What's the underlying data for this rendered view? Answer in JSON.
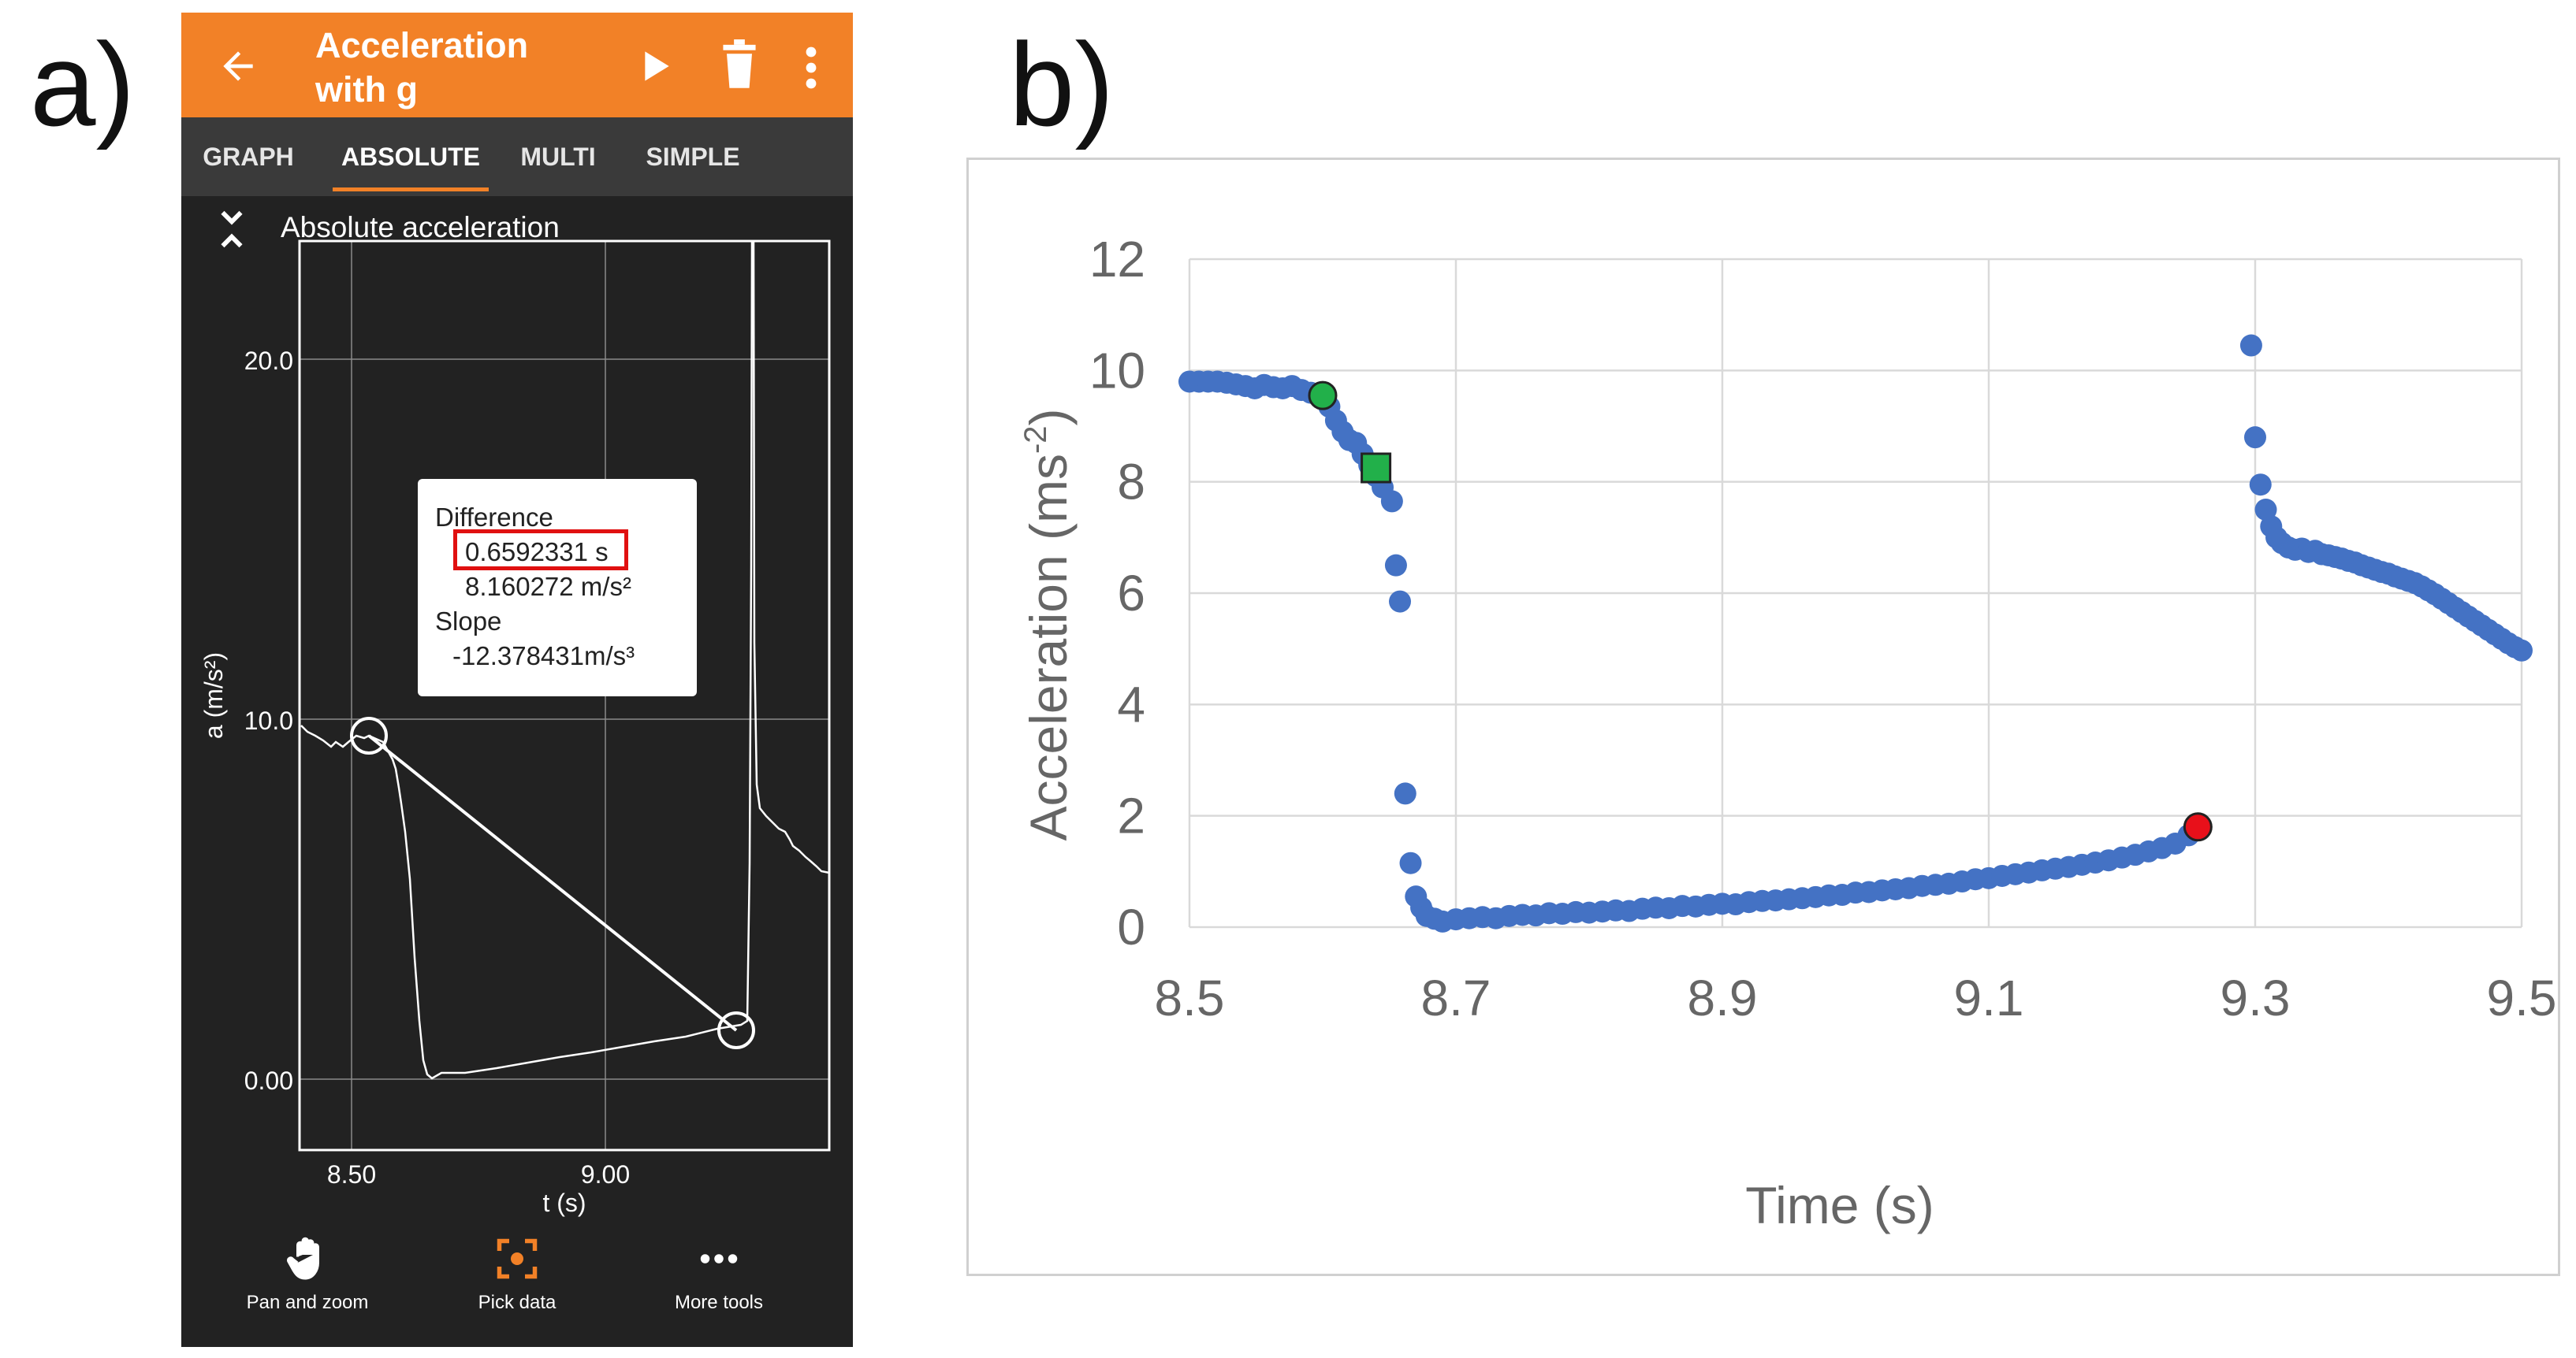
{
  "labels": {
    "panel_a": "a)",
    "panel_b": "b)"
  },
  "app": {
    "title": "Acceleration with g",
    "icons": [
      "back-arrow-icon",
      "play-icon",
      "delete-icon",
      "more-vert-icon"
    ],
    "tabs": [
      {
        "label": "GRAPH",
        "active": false
      },
      {
        "label": "ABSOLUTE",
        "active": true
      },
      {
        "label": "MULTI",
        "active": false
      },
      {
        "label": "SIMPLE",
        "active": false
      }
    ],
    "colors": {
      "accent": "#f28127",
      "background": "#222222",
      "tabbar": "#3a3a3a"
    }
  },
  "phone_graph": {
    "title": "Absolute acceleration",
    "ylabel": "a (m/s²)",
    "xlabel": "t (s)",
    "x_ticks": [
      "8.50",
      "9.00"
    ],
    "y_ticks": [
      "20.0",
      "10.0",
      "0.00"
    ],
    "tooltip": {
      "difference_label": "Difference",
      "difference_time": "0.6592331 s",
      "difference_accel": "8.160272 m/s²",
      "slope_label": "Slope",
      "slope_value": "-12.378431m/s³"
    }
  },
  "bottom_tools": [
    {
      "label": "Pan and zoom",
      "icon": "hand-icon"
    },
    {
      "label": "Pick data",
      "icon": "crosshair-select-icon"
    },
    {
      "label": "More tools",
      "icon": "more-horiz-icon"
    }
  ],
  "chart_data": {
    "type": "scatter",
    "title": "",
    "xlabel": "Time (s)",
    "ylabel": "Acceleration (ms⁻²)",
    "ylabel_parts": {
      "main": "Acceleration (ms",
      "sup": "-2",
      "end": ")"
    },
    "xlim": [
      8.5,
      9.5
    ],
    "ylim": [
      0,
      12
    ],
    "x_ticks": [
      "8.5",
      "8.7",
      "8.9",
      "9.1",
      "9.3",
      "9.5"
    ],
    "y_ticks": [
      "0",
      "2",
      "4",
      "6",
      "8",
      "10",
      "12"
    ],
    "grid": true,
    "series": [
      {
        "name": "data",
        "color": "#4472c4",
        "points": [
          [
            8.5,
            9.8
          ],
          [
            8.507,
            9.8
          ],
          [
            8.514,
            9.8
          ],
          [
            8.521,
            9.8
          ],
          [
            8.528,
            9.78
          ],
          [
            8.535,
            9.75
          ],
          [
            8.542,
            9.72
          ],
          [
            8.549,
            9.68
          ],
          [
            8.556,
            9.74
          ],
          [
            8.563,
            9.7
          ],
          [
            8.57,
            9.68
          ],
          [
            8.577,
            9.72
          ],
          [
            8.584,
            9.65
          ],
          [
            8.591,
            9.6
          ],
          [
            8.598,
            9.55
          ],
          [
            8.605,
            9.35
          ],
          [
            8.61,
            9.1
          ],
          [
            8.615,
            8.9
          ],
          [
            8.62,
            8.75
          ],
          [
            8.625,
            8.7
          ],
          [
            8.63,
            8.5
          ],
          [
            8.635,
            8.3
          ],
          [
            8.64,
            8.1
          ],
          [
            8.645,
            7.9
          ],
          [
            8.652,
            7.65
          ],
          [
            8.655,
            6.5
          ],
          [
            8.658,
            5.85
          ],
          [
            8.662,
            2.4
          ],
          [
            8.666,
            1.15
          ],
          [
            8.67,
            0.55
          ],
          [
            8.674,
            0.35
          ],
          [
            8.678,
            0.2
          ],
          [
            8.684,
            0.15
          ],
          [
            8.69,
            0.1
          ],
          [
            8.7,
            0.14
          ],
          [
            8.71,
            0.16
          ],
          [
            8.72,
            0.18
          ],
          [
            8.73,
            0.16
          ],
          [
            8.74,
            0.2
          ],
          [
            8.75,
            0.22
          ],
          [
            8.76,
            0.21
          ],
          [
            8.77,
            0.25
          ],
          [
            8.78,
            0.24
          ],
          [
            8.79,
            0.27
          ],
          [
            8.8,
            0.26
          ],
          [
            8.81,
            0.28
          ],
          [
            8.82,
            0.3
          ],
          [
            8.83,
            0.29
          ],
          [
            8.84,
            0.33
          ],
          [
            8.85,
            0.35
          ],
          [
            8.86,
            0.34
          ],
          [
            8.87,
            0.38
          ],
          [
            8.88,
            0.37
          ],
          [
            8.89,
            0.4
          ],
          [
            8.9,
            0.42
          ],
          [
            8.91,
            0.41
          ],
          [
            8.92,
            0.45
          ],
          [
            8.93,
            0.47
          ],
          [
            8.94,
            0.48
          ],
          [
            8.95,
            0.5
          ],
          [
            8.96,
            0.52
          ],
          [
            8.97,
            0.54
          ],
          [
            8.98,
            0.57
          ],
          [
            8.99,
            0.58
          ],
          [
            9.0,
            0.62
          ],
          [
            9.01,
            0.63
          ],
          [
            9.02,
            0.66
          ],
          [
            9.03,
            0.68
          ],
          [
            9.04,
            0.7
          ],
          [
            9.05,
            0.74
          ],
          [
            9.06,
            0.76
          ],
          [
            9.07,
            0.78
          ],
          [
            9.08,
            0.82
          ],
          [
            9.09,
            0.86
          ],
          [
            9.1,
            0.88
          ],
          [
            9.11,
            0.92
          ],
          [
            9.12,
            0.95
          ],
          [
            9.13,
            0.98
          ],
          [
            9.14,
            1.02
          ],
          [
            9.15,
            1.05
          ],
          [
            9.16,
            1.08
          ],
          [
            9.17,
            1.12
          ],
          [
            9.18,
            1.16
          ],
          [
            9.19,
            1.2
          ],
          [
            9.2,
            1.25
          ],
          [
            9.21,
            1.3
          ],
          [
            9.22,
            1.36
          ],
          [
            9.23,
            1.42
          ],
          [
            9.24,
            1.5
          ],
          [
            9.25,
            1.65
          ],
          [
            9.297,
            10.45
          ],
          [
            9.3,
            8.8
          ],
          [
            9.304,
            7.95
          ],
          [
            9.308,
            7.5
          ],
          [
            9.312,
            7.2
          ],
          [
            9.316,
            7.0
          ],
          [
            9.32,
            6.9
          ],
          [
            9.325,
            6.82
          ],
          [
            9.33,
            6.78
          ],
          [
            9.335,
            6.8
          ],
          [
            9.34,
            6.74
          ],
          [
            9.345,
            6.76
          ],
          [
            9.35,
            6.7
          ],
          [
            9.355,
            6.68
          ],
          [
            9.36,
            6.65
          ],
          [
            9.365,
            6.62
          ],
          [
            9.37,
            6.58
          ],
          [
            9.375,
            6.55
          ],
          [
            9.38,
            6.5
          ],
          [
            9.385,
            6.46
          ],
          [
            9.39,
            6.42
          ],
          [
            9.395,
            6.38
          ],
          [
            9.4,
            6.35
          ],
          [
            9.405,
            6.3
          ],
          [
            9.41,
            6.26
          ],
          [
            9.415,
            6.22
          ],
          [
            9.42,
            6.18
          ],
          [
            9.425,
            6.12
          ],
          [
            9.43,
            6.05
          ],
          [
            9.435,
            5.98
          ],
          [
            9.44,
            5.9
          ],
          [
            9.445,
            5.82
          ],
          [
            9.45,
            5.74
          ],
          [
            9.455,
            5.66
          ],
          [
            9.46,
            5.58
          ],
          [
            9.465,
            5.5
          ],
          [
            9.47,
            5.42
          ],
          [
            9.475,
            5.34
          ],
          [
            9.48,
            5.26
          ],
          [
            9.485,
            5.18
          ],
          [
            9.49,
            5.1
          ],
          [
            9.495,
            5.03
          ],
          [
            9.5,
            4.97
          ]
        ]
      }
    ],
    "markers": [
      {
        "name": "start-marker",
        "shape": "circle",
        "color": "#22b04a",
        "x": 8.6,
        "y": 9.55
      },
      {
        "name": "mid-marker",
        "shape": "square",
        "color": "#22b04a",
        "x": 8.64,
        "y": 8.25
      },
      {
        "name": "end-marker",
        "shape": "circle",
        "color": "#e8101a",
        "x": 9.257,
        "y": 1.8
      }
    ]
  }
}
